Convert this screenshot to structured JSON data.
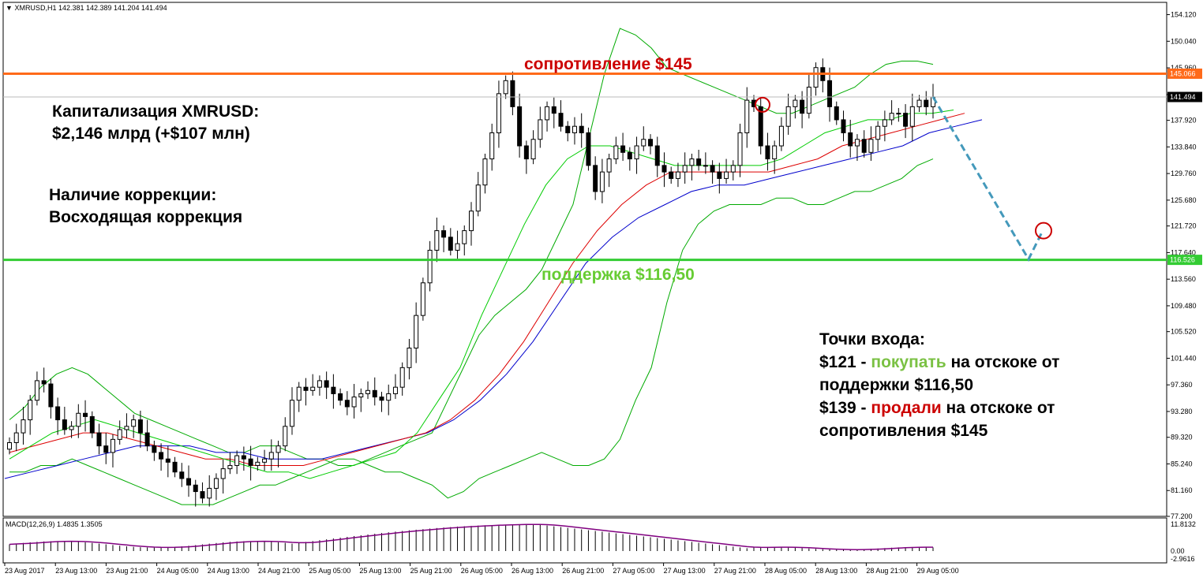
{
  "header": {
    "symbol_line": "XMRUSD,H1  142.381 142.389 141.204 141.494",
    "arrow_icon": "triangle-down-icon"
  },
  "macd": {
    "label": "MACD(12,26,9) 1.4835 1.3505",
    "axis_top": "11.8132",
    "axis_zero": "0.00",
    "axis_bottom": "-2.9616",
    "color": "#800080"
  },
  "annotations": {
    "cap_line1": "Капитализация XMRUSD:",
    "cap_line2": "$2,146 млрд (+$107 млн)",
    "corr_line1": "Наличие коррекции:",
    "corr_line2": "Восходящая коррекция",
    "entry_title": "Точки входа:",
    "entry1_a": "$121 - ",
    "entry1_b": "покупать",
    "entry1_c": " на отскоке от",
    "entry1_d": "поддержки $116,50",
    "entry2_a": "$139 - ",
    "entry2_b": "продали",
    "entry2_c": " на отскоке от",
    "entry2_d": "сопротивления $145"
  },
  "levels": {
    "resistance": {
      "label": "сопротивление $145",
      "price": 145.066,
      "tag": "145.066",
      "color": "#ff6a1a",
      "label_color": "#cc0000"
    },
    "support": {
      "label": "поддержка $116,50",
      "price": 116.526,
      "tag": "116.526",
      "color": "#33cc33",
      "label_color": "#66cc33"
    },
    "current": {
      "tag": "141.494",
      "price": 141.494
    }
  },
  "chart_data": {
    "type": "candlestick",
    "symbol": "XMRUSD",
    "timeframe": "H1",
    "ylim": [
      77.2,
      156.0
    ],
    "y_ticks": [
      "154.120",
      "150.040",
      "145.960",
      "141.880",
      "137.920",
      "133.840",
      "129.760",
      "125.680",
      "121.720",
      "117.640",
      "113.560",
      "109.480",
      "105.520",
      "101.440",
      "97.360",
      "93.280",
      "89.320",
      "85.240",
      "81.160",
      "77.200"
    ],
    "x_ticks": [
      "23 Aug 2017",
      "23 Aug 13:00",
      "23 Aug 21:00",
      "24 Aug 05:00",
      "24 Aug 13:00",
      "24 Aug 21:00",
      "25 Aug 05:00",
      "25 Aug 13:00",
      "25 Aug 21:00",
      "26 Aug 05:00",
      "26 Aug 13:00",
      "26 Aug 21:00",
      "27 Aug 05:00",
      "27 Aug 13:00",
      "27 Aug 21:00",
      "28 Aug 05:00",
      "28 Aug 13:00",
      "28 Aug 21:00",
      "29 Aug 05:00"
    ],
    "candles_close": [
      88.5,
      90,
      92,
      95,
      98,
      97.5,
      94,
      92,
      90.5,
      91,
      93,
      92.5,
      90,
      88,
      87,
      89,
      90.5,
      91,
      92,
      90,
      88,
      87,
      86,
      85.5,
      84,
      83,
      82,
      81,
      80,
      81.5,
      83,
      84.5,
      85,
      86.5,
      86,
      85,
      85.5,
      86,
      87,
      88,
      91,
      95,
      97,
      96.5,
      97,
      98,
      97,
      96,
      95,
      94,
      95.5,
      96,
      96.5,
      95.5,
      95,
      96,
      97,
      100,
      103,
      108,
      113,
      118,
      121,
      120,
      118,
      119,
      121,
      124,
      128,
      132,
      136,
      142,
      144,
      140,
      134,
      132,
      135,
      138,
      140,
      139,
      137,
      136,
      137,
      136,
      131,
      127,
      130,
      132,
      134,
      133,
      132,
      134,
      135,
      134,
      131,
      130,
      129,
      130,
      131,
      132,
      131,
      131,
      130,
      129,
      130,
      131,
      136,
      141,
      140,
      134,
      132,
      134,
      137,
      140,
      141,
      139,
      143,
      146,
      144,
      140,
      138,
      136,
      134,
      135,
      133,
      135,
      137,
      138,
      139,
      139,
      137,
      140,
      141,
      140,
      141.5
    ],
    "bollinger_upper": [
      92,
      94,
      97,
      99,
      100,
      99,
      97,
      95,
      93,
      92,
      91,
      90,
      89,
      88,
      87,
      87,
      88,
      88,
      87,
      86,
      86,
      85,
      85,
      86,
      87,
      88,
      89,
      90,
      95,
      100,
      105,
      108,
      110,
      112,
      115,
      120,
      125,
      135,
      145,
      152,
      151,
      149,
      146,
      145,
      144,
      143,
      142,
      141,
      140,
      139,
      139,
      140,
      141,
      142,
      143,
      145,
      146.5,
      147,
      147,
      146.5
    ],
    "bollinger_lower": [
      84,
      84,
      85,
      85,
      86,
      85,
      84,
      83,
      82,
      81,
      80,
      79,
      79,
      79,
      80,
      81,
      82,
      82,
      83,
      84,
      85,
      86,
      86,
      85,
      84,
      84,
      83,
      82,
      80,
      81,
      83,
      84,
      85,
      86,
      87,
      86,
      85,
      85,
      86,
      89,
      95,
      100,
      110,
      118,
      122,
      124,
      125,
      125,
      125,
      126,
      126,
      125,
      125,
      126,
      127,
      127,
      128,
      129,
      131,
      132
    ],
    "ma_fast": [
      86,
      88,
      90,
      91,
      92,
      91,
      90,
      89,
      88,
      87,
      86,
      85,
      84,
      84,
      83,
      84,
      85,
      86,
      87,
      90,
      95,
      100,
      108,
      115,
      122,
      128,
      132,
      134,
      134,
      133,
      132,
      131,
      131,
      131,
      131,
      131,
      132,
      134,
      136,
      137,
      138,
      138,
      139,
      139,
      139.5
    ],
    "ma_mid": [
      87,
      88,
      89,
      90,
      90,
      89,
      88,
      87,
      86,
      86,
      85,
      85,
      85,
      86,
      87,
      88,
      89,
      90,
      92,
      95,
      99,
      104,
      110,
      116,
      121,
      125,
      128,
      130,
      130,
      130,
      130,
      130,
      131,
      132,
      134,
      135,
      136,
      137,
      138,
      139
    ],
    "ma_slow": [
      83,
      84,
      85,
      86,
      87,
      88,
      88,
      88,
      87,
      87,
      86,
      86,
      86,
      87,
      88,
      89,
      90,
      92,
      95,
      99,
      104,
      110,
      116,
      120,
      123,
      125,
      127,
      128,
      128,
      129,
      130,
      131,
      132,
      133,
      134,
      136,
      137,
      138
    ],
    "forecast": {
      "from": 141.5,
      "to_support": 116.5,
      "target": 121
    }
  },
  "colors": {
    "up_body": "#ffffff",
    "down_body": "#000000",
    "bollinger": "#00aa00",
    "ma_fast": "#00cc00",
    "ma_mid": "#dd0000",
    "ma_slow": "#0000cc",
    "forecast": "#4499bb",
    "grid": "#c8c8c8"
  }
}
